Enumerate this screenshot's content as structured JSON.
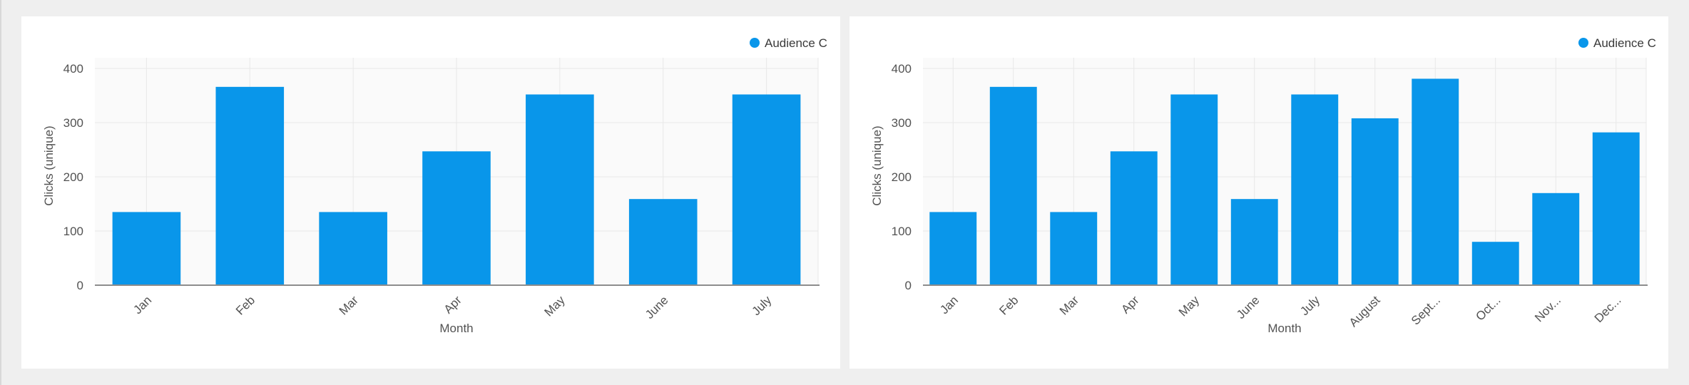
{
  "colors": {
    "bar": "#0996ea",
    "grid": "#e8e8e8",
    "plot_bg": "#fafafa",
    "axis": "#8d8d8d",
    "text": "#525252"
  },
  "chart_data": [
    {
      "type": "bar",
      "title": "",
      "xlabel": "Month",
      "ylabel": "Clicks (unique)",
      "ylim": [
        0,
        400
      ],
      "yticks": [
        0,
        100,
        200,
        300,
        400
      ],
      "legend_position": "top-right",
      "categories": [
        "Jan",
        "Feb",
        "Mar",
        "Apr",
        "May",
        "June",
        "July"
      ],
      "series": [
        {
          "name": "Audience C",
          "values": [
            135,
            366,
            135,
            247,
            352,
            159,
            352
          ]
        }
      ]
    },
    {
      "type": "bar",
      "title": "",
      "xlabel": "Month",
      "ylabel": "Clicks (unique)",
      "ylim": [
        0,
        400
      ],
      "yticks": [
        0,
        100,
        200,
        300,
        400
      ],
      "legend_position": "top-right",
      "categories": [
        "Jan",
        "Feb",
        "Mar",
        "Apr",
        "May",
        "June",
        "July",
        "August",
        "Sept...",
        "Oct...",
        "Nov...",
        "Dec..."
      ],
      "series": [
        {
          "name": "Audience C",
          "values": [
            135,
            366,
            135,
            247,
            352,
            159,
            352,
            308,
            381,
            80,
            170,
            282
          ]
        }
      ]
    }
  ]
}
